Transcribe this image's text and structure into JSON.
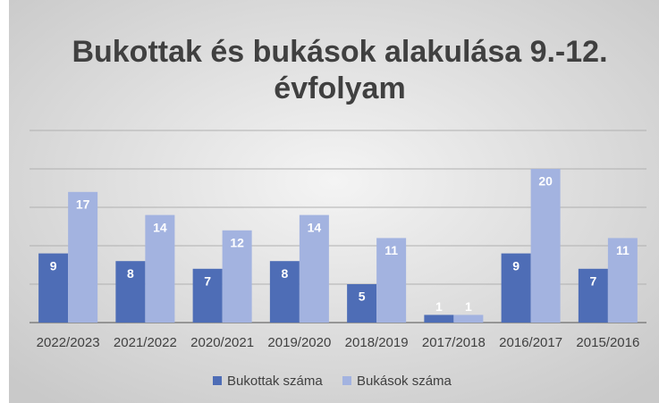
{
  "chart_data": {
    "type": "bar",
    "title": "Bukottak és bukások alakulása 9.-12. évfolyam",
    "categories": [
      "2022/2023",
      "2021/2022",
      "2020/2021",
      "2019/2020",
      "2018/2019",
      "2017/2018",
      "2016/2017",
      "2015/2016"
    ],
    "series": [
      {
        "name": "Bukottak száma",
        "color": "#4e6db6",
        "values": [
          9,
          8,
          7,
          8,
          5,
          1,
          9,
          7
        ]
      },
      {
        "name": "Bukások száma",
        "color": "#a3b3e0",
        "values": [
          17,
          14,
          12,
          14,
          11,
          1,
          20,
          11
        ]
      }
    ],
    "ylim": [
      0,
      25
    ],
    "yticks": [
      0,
      5,
      10,
      15,
      20,
      25
    ],
    "grid": true,
    "legend": "bottom"
  }
}
